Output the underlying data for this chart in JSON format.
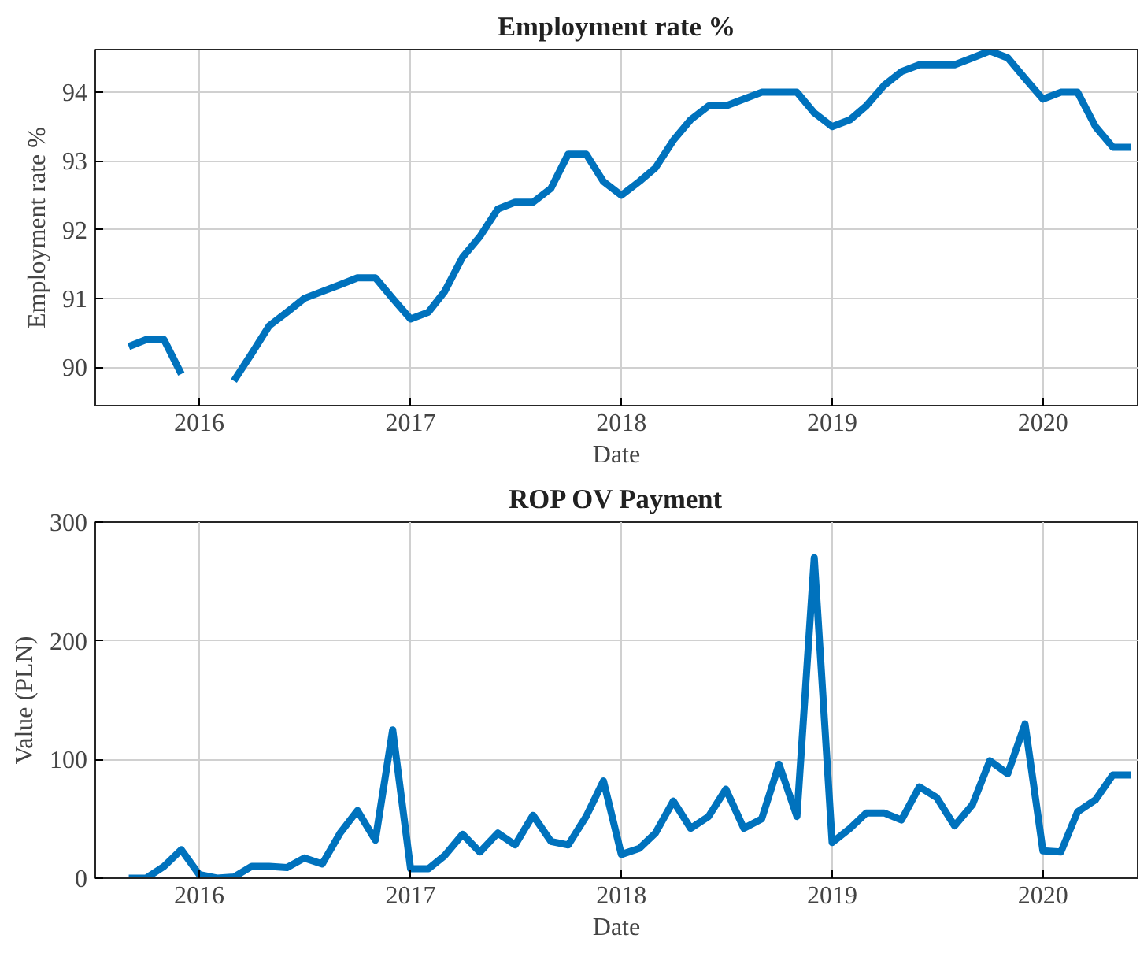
{
  "chart_data": [
    {
      "type": "line",
      "title": "Employment rate %",
      "xlabel": "Date",
      "ylabel": "Employment rate %",
      "x": [
        "2015-09",
        "2015-10",
        "2015-11",
        "2015-12",
        "2016-01",
        "2016-02",
        "2016-03",
        "2016-04",
        "2016-05",
        "2016-06",
        "2016-07",
        "2016-08",
        "2016-09",
        "2016-10",
        "2016-11",
        "2016-12",
        "2017-01",
        "2017-02",
        "2017-03",
        "2017-04",
        "2017-05",
        "2017-06",
        "2017-07",
        "2017-08",
        "2017-09",
        "2017-10",
        "2017-11",
        "2017-12",
        "2018-01",
        "2018-02",
        "2018-03",
        "2018-04",
        "2018-05",
        "2018-06",
        "2018-07",
        "2018-08",
        "2018-09",
        "2018-10",
        "2018-11",
        "2018-12",
        "2019-01",
        "2019-02",
        "2019-03",
        "2019-04",
        "2019-05",
        "2019-06",
        "2019-07",
        "2019-08",
        "2019-09",
        "2019-10",
        "2019-11",
        "2019-12",
        "2020-01",
        "2020-02",
        "2020-03",
        "2020-04",
        "2020-05",
        "2020-06"
      ],
      "series": [
        {
          "color": "#0072bd",
          "values": [
            90.3,
            90.4,
            90.4,
            89.9,
            null,
            null,
            89.8,
            90.2,
            90.6,
            90.8,
            91.0,
            91.1,
            91.2,
            91.3,
            91.3,
            91.0,
            90.7,
            90.8,
            91.1,
            91.6,
            91.9,
            92.3,
            92.4,
            92.4,
            92.6,
            93.1,
            93.1,
            92.7,
            92.5,
            92.7,
            92.9,
            93.3,
            93.6,
            93.8,
            93.8,
            93.9,
            94.0,
            94.0,
            94.0,
            93.7,
            93.5,
            93.6,
            93.8,
            94.1,
            94.3,
            94.4,
            94.4,
            94.4,
            94.5,
            94.6,
            94.5,
            94.2,
            93.9,
            94.0,
            94.0,
            93.5,
            93.2,
            93.2
          ]
        }
      ],
      "xlim": [
        "2015-07-05",
        "2020-06-13"
      ],
      "xticks": [
        "2016",
        "2017",
        "2018",
        "2019",
        "2020"
      ],
      "ylim": [
        89.44,
        94.62
      ],
      "yticks": [
        90,
        91,
        92,
        93,
        94
      ],
      "grid": true,
      "line_style": "solid"
    },
    {
      "type": "line",
      "title": "ROP OV Payment",
      "xlabel": "Date",
      "ylabel": "Value (PLN)",
      "x": [
        "2015-09",
        "2015-10",
        "2015-11",
        "2015-12",
        "2016-01",
        "2016-02",
        "2016-03",
        "2016-04",
        "2016-05",
        "2016-06",
        "2016-07",
        "2016-08",
        "2016-09",
        "2016-10",
        "2016-11",
        "2016-12",
        "2017-01",
        "2017-02",
        "2017-03",
        "2017-04",
        "2017-05",
        "2017-06",
        "2017-07",
        "2017-08",
        "2017-09",
        "2017-10",
        "2017-11",
        "2017-12",
        "2018-01",
        "2018-02",
        "2018-03",
        "2018-04",
        "2018-05",
        "2018-06",
        "2018-07",
        "2018-08",
        "2018-09",
        "2018-10",
        "2018-11",
        "2018-12",
        "2019-01",
        "2019-02",
        "2019-03",
        "2019-04",
        "2019-05",
        "2019-06",
        "2019-07",
        "2019-08",
        "2019-09",
        "2019-10",
        "2019-11",
        "2019-12",
        "2020-01",
        "2020-02",
        "2020-03",
        "2020-04",
        "2020-05",
        "2020-06"
      ],
      "series": [
        {
          "color": "#0072bd",
          "values": [
            0,
            0,
            10,
            24,
            3,
            0,
            1,
            10,
            10,
            9,
            17,
            12,
            38,
            57,
            32,
            125,
            8,
            8,
            19,
            37,
            22,
            38,
            28,
            53,
            31,
            28,
            52,
            82,
            20,
            25,
            38,
            65,
            42,
            52,
            75,
            42,
            50,
            96,
            52,
            270,
            30,
            42,
            55,
            55,
            49,
            77,
            68,
            44,
            62,
            99,
            88,
            130,
            23,
            22,
            56,
            66,
            87,
            87
          ]
        }
      ],
      "xlim": [
        "2015-07-05",
        "2020-06-13"
      ],
      "xticks": [
        "2016",
        "2017",
        "2018",
        "2019",
        "2020"
      ],
      "ylim": [
        0,
        300
      ],
      "yticks": [
        0,
        100,
        200,
        300
      ],
      "grid": true,
      "line_style": "solid"
    }
  ]
}
